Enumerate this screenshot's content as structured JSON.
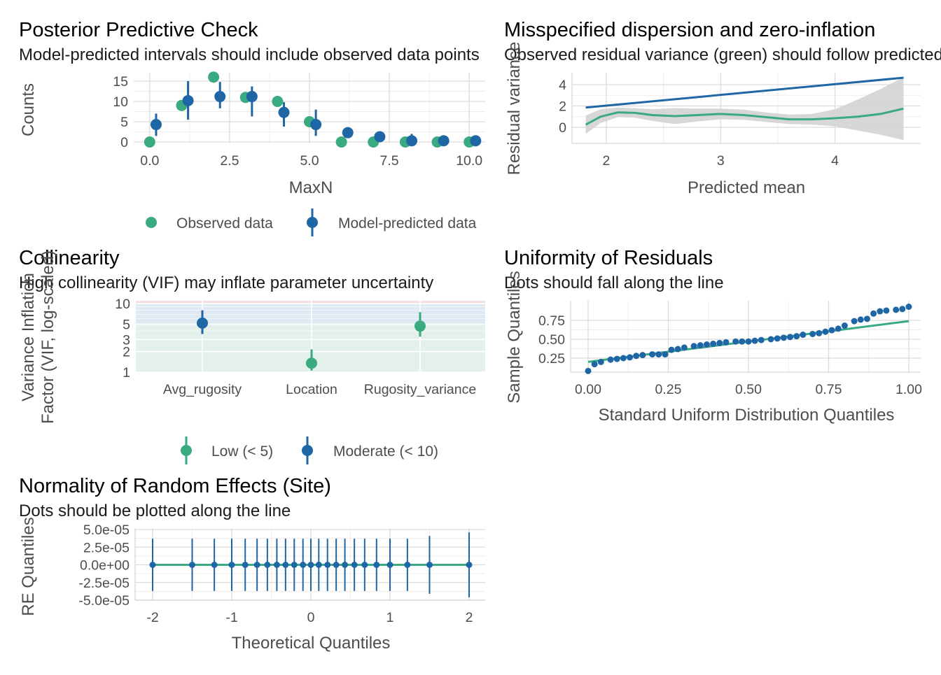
{
  "colors": {
    "observed": "#3aaa80",
    "predicted": "#1f66a6",
    "ribbon": "#d3d3d3",
    "vif_low_bg": "#e3f1ea",
    "vif_mod_bg": "#dfe9f3",
    "vif_high_bg": "#f6dfe2"
  },
  "chart_data": [
    {
      "id": "ppc",
      "type": "scatter",
      "title": "Posterior Predictive Check",
      "subtitle": "Model-predicted intervals should include observed data points",
      "xlabel": "MaxN",
      "ylabel": "Counts",
      "xlim": [
        -0.5,
        10.5
      ],
      "ylim": [
        0,
        16
      ],
      "xticks": [
        0,
        2.5,
        5,
        7.5,
        10
      ],
      "xtick_labels": [
        "0.0",
        "2.5",
        "5.0",
        "7.5",
        "10.0"
      ],
      "yticks": [
        0,
        5,
        10,
        15
      ],
      "ytick_labels": [
        "0",
        "5",
        "10",
        "15"
      ],
      "legend_position": "bottom",
      "legend": [
        "Observed data",
        "Model-predicted data"
      ],
      "observed": {
        "x": [
          0,
          1,
          2,
          3,
          4,
          5,
          6,
          7,
          8,
          9,
          10
        ],
        "y": [
          0,
          9,
          16,
          11,
          10,
          5,
          0,
          0,
          0,
          0,
          0
        ]
      },
      "predicted": {
        "x": [
          0.2,
          1.2,
          2.2,
          3.2,
          4.2,
          5.2,
          6.2,
          7.2,
          8.2,
          9.2,
          10.2
        ],
        "y": [
          4.3,
          10.2,
          11.2,
          11.2,
          7.3,
          4.3,
          2.3,
          1.3,
          0.3,
          0.3,
          0.3
        ],
        "low": [
          1.5,
          5.5,
          8.3,
          6.3,
          3.8,
          1.5,
          1.3,
          0,
          0,
          0,
          0
        ],
        "high": [
          7,
          15,
          14.8,
          13.7,
          9.8,
          8,
          3.3,
          2.5,
          2,
          1,
          1
        ]
      }
    },
    {
      "id": "dispersion",
      "type": "line",
      "title": "Misspecified dispersion and zero-inflation",
      "subtitle": "Observed residual variance (green) should follow predicted residual variance (blue)",
      "xlabel": "Predicted mean",
      "ylabel": "Residual variance",
      "xlim": [
        1.7,
        4.75
      ],
      "ylim": [
        -1.5,
        5
      ],
      "xticks": [
        2,
        3,
        4
      ],
      "yticks": [
        0,
        2,
        4
      ],
      "predicted_line": {
        "x": [
          1.82,
          4.6
        ],
        "y": [
          1.85,
          4.65
        ]
      },
      "observed_smooth": {
        "x": [
          1.82,
          1.95,
          2.1,
          2.25,
          2.4,
          2.6,
          2.8,
          3.0,
          3.2,
          3.4,
          3.6,
          3.8,
          4.0,
          4.2,
          4.4,
          4.6
        ],
        "y": [
          0.25,
          1.0,
          1.4,
          1.35,
          1.15,
          1.05,
          1.15,
          1.25,
          1.15,
          0.95,
          0.75,
          0.75,
          0.85,
          1.0,
          1.25,
          1.75
        ],
        "low": [
          -0.6,
          0.4,
          0.95,
          0.9,
          0.6,
          0.3,
          0.55,
          0.75,
          0.7,
          0.5,
          0.3,
          0.25,
          0.1,
          -0.3,
          -0.7,
          -1.2
        ],
        "high": [
          1.1,
          1.7,
          1.85,
          1.8,
          1.7,
          1.8,
          1.75,
          1.75,
          1.65,
          1.4,
          1.2,
          1.25,
          1.7,
          2.6,
          3.6,
          4.7
        ]
      }
    },
    {
      "id": "collinearity",
      "type": "scatter",
      "title": "Collinearity",
      "subtitle": "High collinearity (VIF) may inflate parameter uncertainty",
      "xlabel": "",
      "ylabel": [
        "Variance Inflation",
        "Factor (VIF, log-scaled)"
      ],
      "log_scale_y": true,
      "ylim": [
        1,
        11
      ],
      "yticks": [
        1,
        2,
        3,
        5,
        10
      ],
      "categories": [
        "Avg_rugosity",
        "Location",
        "Rugosity_variance"
      ],
      "values": [
        5.2,
        1.35,
        4.7
      ],
      "low": [
        3.6,
        1.05,
        3.3
      ],
      "high": [
        8.0,
        2.15,
        7.5
      ],
      "groups": [
        "Moderate (< 10)",
        "Low (< 5)",
        "Low (< 5)"
      ],
      "legend_position": "bottom",
      "legend": [
        "Low (< 5)",
        "Moderate (< 10)"
      ],
      "bands": [
        [
          1,
          5
        ],
        [
          5,
          10
        ],
        [
          10,
          11
        ]
      ]
    },
    {
      "id": "uniformity",
      "type": "scatter",
      "title": "Uniformity of Residuals",
      "subtitle": "Dots should fall along the line",
      "xlabel": "Standard Uniform Distribution Quantiles",
      "ylabel": "Sample Quantiles",
      "xlim": [
        -0.03,
        1.03
      ],
      "ylim": [
        0.0,
        0.98
      ],
      "xticks": [
        0,
        0.25,
        0.5,
        0.75,
        1.0
      ],
      "xtick_labels": [
        "0.00",
        "0.25",
        "0.50",
        "0.75",
        "1.00"
      ],
      "yticks": [
        0.25,
        0.5,
        0.75
      ],
      "ytick_labels": [
        "0.25",
        "0.50",
        "0.75"
      ],
      "points": {
        "x": [
          0.0,
          0.02,
          0.04,
          0.07,
          0.09,
          0.11,
          0.13,
          0.15,
          0.17,
          0.2,
          0.22,
          0.24,
          0.26,
          0.28,
          0.3,
          0.33,
          0.35,
          0.37,
          0.39,
          0.41,
          0.43,
          0.46,
          0.48,
          0.5,
          0.52,
          0.54,
          0.57,
          0.59,
          0.61,
          0.63,
          0.65,
          0.67,
          0.7,
          0.72,
          0.74,
          0.76,
          0.78,
          0.8,
          0.83,
          0.85,
          0.87,
          0.89,
          0.91,
          0.93,
          0.96,
          0.98,
          1.0
        ],
        "y": [
          0.08,
          0.17,
          0.2,
          0.23,
          0.24,
          0.25,
          0.26,
          0.28,
          0.29,
          0.3,
          0.3,
          0.3,
          0.36,
          0.37,
          0.39,
          0.41,
          0.42,
          0.43,
          0.44,
          0.45,
          0.46,
          0.47,
          0.47,
          0.47,
          0.48,
          0.49,
          0.5,
          0.51,
          0.52,
          0.53,
          0.54,
          0.56,
          0.57,
          0.58,
          0.6,
          0.62,
          0.64,
          0.68,
          0.74,
          0.76,
          0.77,
          0.84,
          0.87,
          0.88,
          0.89,
          0.9,
          0.93
        ]
      },
      "ref_line": {
        "x": [
          0.0,
          1.0
        ],
        "y": [
          0.2,
          0.74
        ]
      }
    },
    {
      "id": "re_normality",
      "type": "scatter",
      "title": "Normality of Random Effects (Site)",
      "subtitle": "Dots should be plotted along the line",
      "xlabel": "Theoretical Quantiles",
      "ylabel": "RE Quantiles",
      "xlim": [
        -2.15,
        2.2
      ],
      "ylim": [
        -5e-05,
        5.2e-05
      ],
      "xticks": [
        -2,
        -1,
        0,
        1,
        2
      ],
      "xtick_labels": [
        "-2",
        "-1",
        "0",
        "1",
        "2"
      ],
      "yticks": [
        -5e-05,
        -2.5e-05,
        0,
        2.5e-05,
        5e-05
      ],
      "ytick_labels": [
        "-5.0e-05",
        "-2.5e-05",
        "0.0e+00",
        "2.5e-05",
        "5.0e-05"
      ],
      "points": {
        "x": [
          -2.0,
          -1.5,
          -1.22,
          -1.0,
          -0.83,
          -0.68,
          -0.55,
          -0.43,
          -0.32,
          -0.21,
          -0.1,
          0.0,
          0.1,
          0.21,
          0.32,
          0.43,
          0.55,
          0.68,
          0.83,
          1.0,
          1.22,
          1.5,
          2.0
        ],
        "y": [
          0,
          0,
          0,
          0,
          0,
          0,
          0,
          0,
          0,
          0,
          0,
          0,
          0,
          0,
          0,
          0,
          0,
          0,
          0,
          0,
          0,
          0,
          0
        ],
        "err": [
          3.7e-05,
          3.7e-05,
          3.7e-05,
          3.7e-05,
          3.7e-05,
          3.7e-05,
          3.7e-05,
          3.7e-05,
          3.7e-05,
          3.7e-05,
          3.7e-05,
          3.7e-05,
          3.7e-05,
          3.7e-05,
          3.7e-05,
          3.7e-05,
          3.7e-05,
          3.7e-05,
          3.7e-05,
          3.7e-05,
          3.7e-05,
          4.1e-05,
          4.6e-05
        ]
      },
      "ref_line": {
        "x": [
          -2.0,
          2.0
        ],
        "y": [
          0,
          0
        ]
      }
    }
  ]
}
